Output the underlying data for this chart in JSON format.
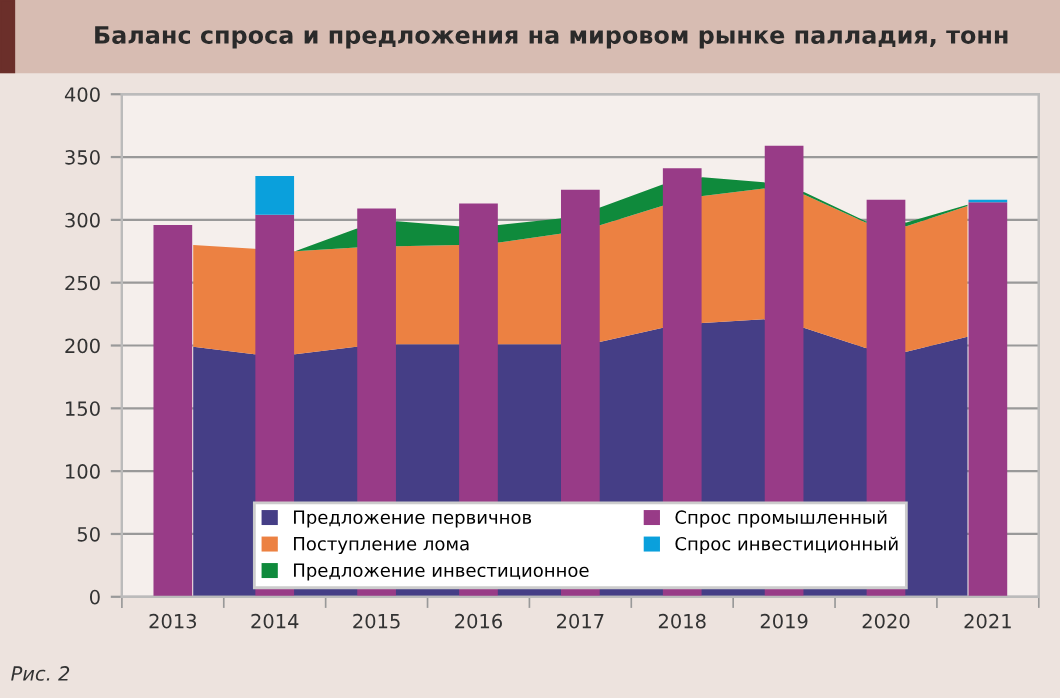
{
  "chart_data": [
    {
      "type": "area",
      "title": "Баланс спроса и предложения на мировом рынке палладия, тонн",
      "x": [
        2013.2,
        2013.8,
        2014.2,
        2014.8,
        2015.2,
        2015.8,
        2016.2,
        2016.8,
        2017.2,
        2017.8,
        2018.2,
        2018.8,
        2019.2,
        2019.8,
        2020.2,
        2020.8
      ],
      "stacked": true,
      "series": [
        {
          "name": "Предложение первичнов",
          "color": "#453e86",
          "values": [
            199,
            193,
            193,
            199,
            201,
            201,
            201,
            201,
            203,
            214,
            218,
            221,
            214,
            198,
            195,
            207
          ]
        },
        {
          "name": "Поступление лома",
          "color": "#ec8142",
          "values": [
            81,
            84,
            82,
            79,
            78,
            79,
            81,
            88,
            93,
            97,
            101,
            104,
            106,
            100,
            100,
            104
          ]
        },
        {
          "name": "Предложение инвестиционное",
          "color": "#0f8a3c",
          "values": [
            0,
            0,
            0,
            15,
            20,
            15,
            14,
            12,
            14,
            17,
            15,
            5,
            2,
            1,
            3,
            1
          ]
        }
      ],
      "xlim": [
        2012.5,
        2021.5
      ],
      "xticks": [
        2013,
        2014,
        2015,
        2016,
        2017,
        2018,
        2019,
        2020,
        2021,
        {
          "value": 2012.5,
          "label": null
        },
        {
          "value": 2013.5,
          "label": null
        },
        {
          "value": 2014.5,
          "label": null
        },
        {
          "value": 2015.5,
          "label": null
        },
        {
          "value": 2016.5,
          "label": null
        },
        {
          "value": 2017.5,
          "label": null
        },
        {
          "value": 2018.5,
          "label": null
        },
        {
          "value": 2019.5,
          "label": null
        },
        {
          "value": 2020.5,
          "label": null
        },
        {
          "value": 2021.5,
          "label": null
        }
      ],
      "ylim": [
        0,
        400
      ],
      "yticks": [
        0,
        50,
        100,
        150,
        200,
        250,
        300,
        350,
        400
      ],
      "grid": "y",
      "legend": "bottom",
      "annotations": [
        "Рис. 2"
      ]
    },
    {
      "type": "bar",
      "categories": [
        "2013",
        "2014",
        "2015",
        "2016",
        "2017",
        "2018",
        "2019",
        "2020",
        "2021"
      ],
      "stacked": true,
      "series": [
        {
          "name": "Спрос промышленный",
          "color": "#983b87",
          "values": [
            296,
            304,
            309,
            313,
            324,
            341,
            359,
            316,
            314
          ]
        },
        {
          "name": "Спрос инвестиционный",
          "color": "#0aa0dc",
          "values": [
            0,
            31,
            0,
            0,
            0,
            0,
            0,
            0,
            2
          ]
        }
      ],
      "ylim": [
        0,
        400
      ],
      "yticks": [
        0,
        50,
        100,
        150,
        200,
        250,
        300,
        350,
        400
      ],
      "tick_labels": false,
      "legend": "bottom"
    }
  ]
}
